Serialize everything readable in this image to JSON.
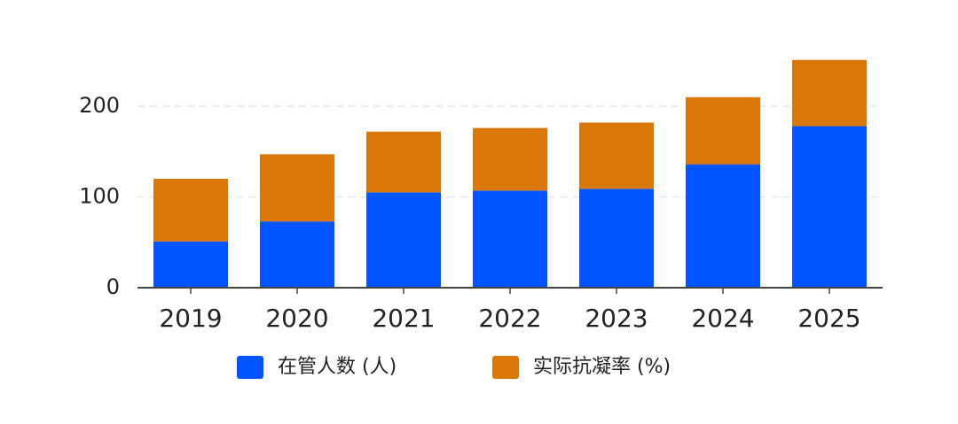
{
  "chart_data": {
    "type": "stacked_bar",
    "categories": [
      "2019",
      "2020",
      "2021",
      "2022",
      "2023",
      "2024",
      "2025"
    ],
    "series": [
      {
        "name": "在管人数 (人)",
        "color": "#0055ff",
        "values": [
          51,
          73,
          105,
          107,
          109,
          136,
          178
        ]
      },
      {
        "name": "实际抗凝率 (%)",
        "color": "#d9770a",
        "values": [
          69,
          74,
          67,
          69,
          73,
          74,
          73
        ]
      }
    ],
    "ylim": [
      0,
      260
    ],
    "yticks": [
      0,
      100,
      200
    ],
    "grid": true,
    "legend": "bottom"
  }
}
